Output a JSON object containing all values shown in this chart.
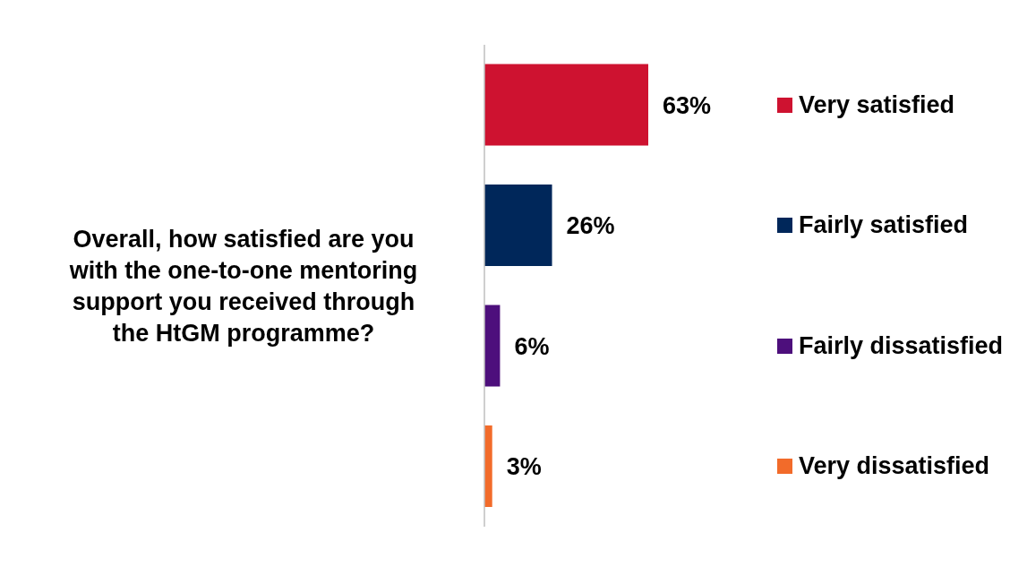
{
  "chart_data": {
    "type": "bar",
    "orientation": "horizontal",
    "ylabel": "Overall, how satisfied are you with the one-to-one mentoring support you received through the HtGM programme?",
    "categories": [
      "Very satisfied",
      "Fairly satisfied",
      "Fairly dissatisfied",
      "Very dissatisfied"
    ],
    "values": [
      63,
      26,
      6,
      3
    ],
    "colors": [
      "#ce1230",
      "#00275a",
      "#4d0f7c",
      "#f26b2a"
    ],
    "value_labels": [
      "63%",
      "26%",
      "6%",
      "3%"
    ],
    "tick_labels": false
  }
}
